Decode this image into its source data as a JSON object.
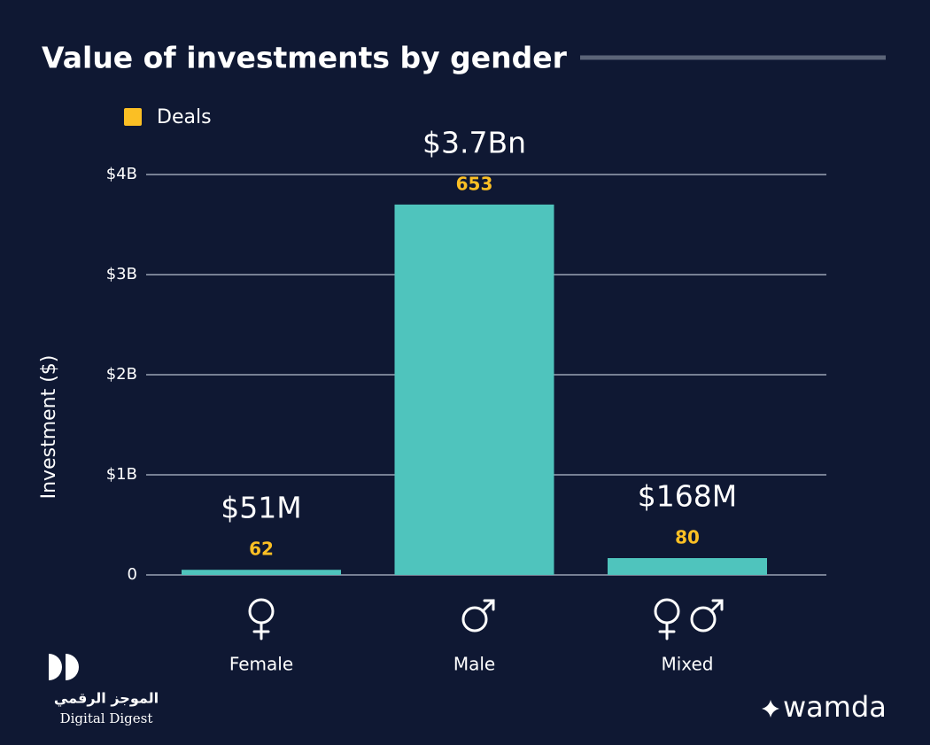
{
  "chart_data": {
    "type": "bar",
    "title": "Value of investments by gender",
    "ylabel": "Investment ($)",
    "categories": [
      "Female",
      "Male",
      "Mixed"
    ],
    "values": [
      51000000,
      3700000000,
      168000000
    ],
    "value_labels": [
      "$51M",
      "$3.7Bn",
      "$168M"
    ],
    "color": "#4fc4bd",
    "deals": {
      "name": "Deals",
      "color": "#fbbf24",
      "values": [
        62,
        653,
        80
      ]
    },
    "ylim": [
      0,
      4000000000
    ],
    "yticks": [
      0,
      {
        "value": 1000000000,
        "label": "$1B"
      },
      {
        "value": 2000000000,
        "label": "$2B"
      },
      {
        "value": 3000000000,
        "label": "$3B"
      },
      {
        "value": 4000000000,
        "label": "$4B"
      }
    ],
    "grid": true
  },
  "branding": {
    "arabic": "الموجز الرقمي",
    "english": "Digital Digest",
    "partner": "wamda"
  }
}
